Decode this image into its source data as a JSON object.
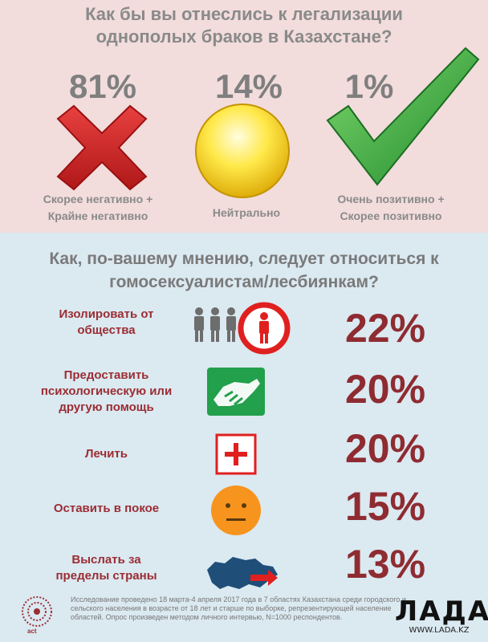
{
  "chart_data": [
    {
      "type": "bar",
      "title": "Как бы вы отнеслись к легализации однополых браков в Казахстане?",
      "categories": [
        "Скорее негативно + Крайне негативно",
        "Нейтрально",
        "Очень позитивно + Скорее позитивно"
      ],
      "values": [
        81,
        14,
        1
      ],
      "value_labels": [
        "81%",
        "14%",
        "1%"
      ]
    },
    {
      "type": "bar",
      "title": "Как, по-вашему мнению, следует относиться к гомосексуалистам/лесбиянкам?",
      "categories": [
        "Изолировать от общества",
        "Предоставить психологическую или другую помощь",
        "Лечить",
        "Оставить в покое",
        "Выслать за пределы страны"
      ],
      "values": [
        22,
        20,
        20,
        15,
        13
      ],
      "value_labels": [
        "22%",
        "20%",
        "20%",
        "15%",
        "13%"
      ]
    }
  ],
  "top": {
    "title_line1": "Как бы вы отнеслись к легализации",
    "title_line2": "однополых браков в Казахстане?",
    "items": [
      {
        "pct": "81%",
        "line1": "Скорее негативно +",
        "line2": "Крайне негативно",
        "icon": "cross-icon"
      },
      {
        "pct": "14%",
        "line1": "Нейтрально",
        "line2": "",
        "icon": "neutral-circle-icon"
      },
      {
        "pct": "1%",
        "line1": "Очень позитивно +",
        "line2": "Скорее позитивно",
        "icon": "checkmark-icon"
      }
    ]
  },
  "bottom": {
    "title_line1": "Как, по-вашему мнению, следует относиться к",
    "title_line2": "гомосексуалистам/лесбиянкам?",
    "rows": [
      {
        "lines": [
          "Изолировать от",
          "общества"
        ],
        "pct": "22%",
        "icon": "isolated-person-icon"
      },
      {
        "lines": [
          "Предоставить",
          "психологическую или",
          "другую помощь"
        ],
        "pct": "20%",
        "icon": "handshake-icon"
      },
      {
        "lines": [
          "Лечить"
        ],
        "pct": "20%",
        "icon": "medical-cross-icon"
      },
      {
        "lines": [
          "Оставить в покое"
        ],
        "pct": "15%",
        "icon": "neutral-face-icon"
      },
      {
        "lines": [
          "Выслать за",
          "пределы страны"
        ],
        "pct": "13%",
        "icon": "kazakhstan-map-icon"
      }
    ]
  },
  "footer": {
    "text": "Исследование проведено 18 марта-4 апреля 2017 года в 7 областях Казахстана среди городского и сельского населения в возрасте от 18 лет и старше по выборке, репрезентирующей население областей. Опрос произведен методом личного интервью, N=1000 респондентов.",
    "logo_text": "act",
    "watermark_big": "ЛАДА",
    "watermark_small": "WWW.LADA.KZ"
  },
  "colors": {
    "top_bg": "#f2dcdc",
    "bottom_bg": "#dbe9f1",
    "accent_red": "#8e2c31",
    "icon_red": "#e0201f",
    "icon_green": "#22a04b",
    "icon_orange": "#f7941d"
  }
}
